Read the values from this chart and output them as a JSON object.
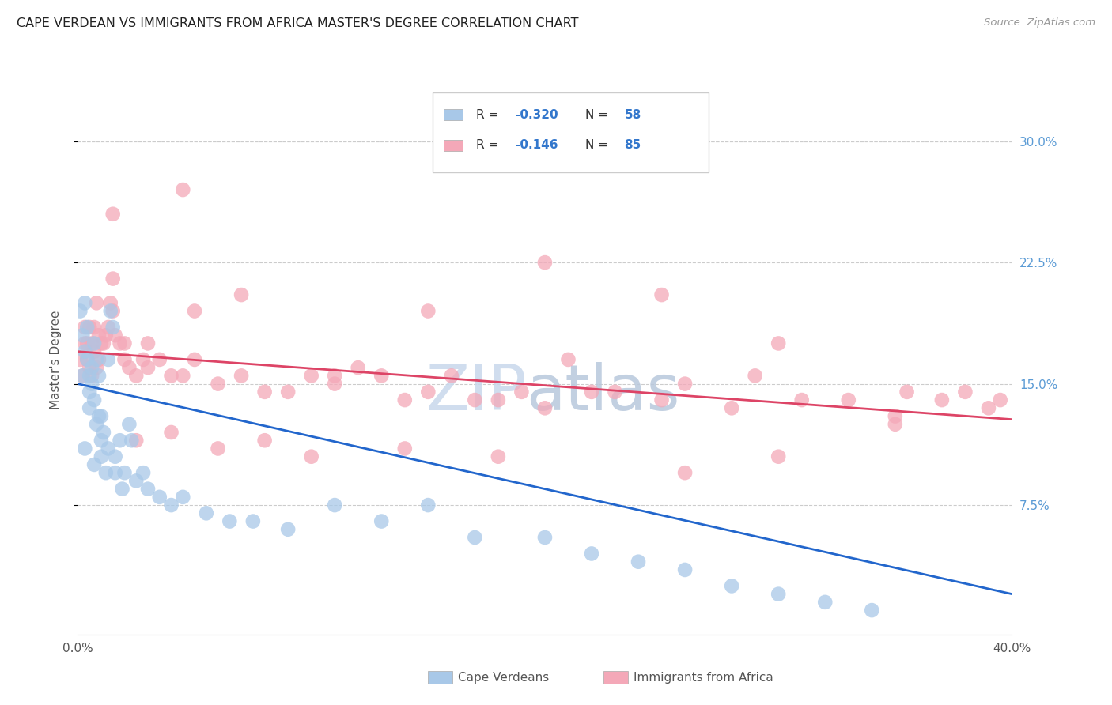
{
  "title": "CAPE VERDEAN VS IMMIGRANTS FROM AFRICA MASTER'S DEGREE CORRELATION CHART",
  "source": "Source: ZipAtlas.com",
  "ylabel": "Master's Degree",
  "ytick_vals": [
    0.075,
    0.15,
    0.225,
    0.3
  ],
  "ytick_labels": [
    "7.5%",
    "15.0%",
    "22.5%",
    "30.0%"
  ],
  "xrange": [
    0.0,
    0.4
  ],
  "yrange": [
    -0.005,
    0.335
  ],
  "blue_color": "#a8c8e8",
  "blue_line_color": "#2266cc",
  "pink_color": "#f4a8b8",
  "pink_line_color": "#dd4466",
  "watermark_zip": "ZIP",
  "watermark_atlas": "atlas",
  "background_color": "#ffffff",
  "grid_color": "#cccccc",
  "title_color": "#222222",
  "blue_label_R": "R = -0.320",
  "blue_label_N": "N = 58",
  "pink_label_R": "R = -0.146",
  "pink_label_N": "N = 85",
  "blue_x": [
    0.001,
    0.002,
    0.002,
    0.003,
    0.003,
    0.004,
    0.004,
    0.005,
    0.005,
    0.006,
    0.006,
    0.007,
    0.007,
    0.008,
    0.008,
    0.009,
    0.009,
    0.01,
    0.01,
    0.011,
    0.012,
    0.013,
    0.014,
    0.015,
    0.016,
    0.018,
    0.02,
    0.022,
    0.025,
    0.028,
    0.03,
    0.035,
    0.04,
    0.045,
    0.055,
    0.065,
    0.075,
    0.09,
    0.11,
    0.13,
    0.15,
    0.17,
    0.2,
    0.22,
    0.24,
    0.26,
    0.28,
    0.3,
    0.32,
    0.34,
    0.003,
    0.005,
    0.007,
    0.01,
    0.013,
    0.016,
    0.019,
    0.023
  ],
  "blue_y": [
    0.195,
    0.18,
    0.155,
    0.2,
    0.17,
    0.165,
    0.185,
    0.155,
    0.145,
    0.16,
    0.15,
    0.14,
    0.175,
    0.165,
    0.125,
    0.13,
    0.155,
    0.115,
    0.105,
    0.12,
    0.095,
    0.11,
    0.195,
    0.185,
    0.105,
    0.115,
    0.095,
    0.125,
    0.09,
    0.095,
    0.085,
    0.08,
    0.075,
    0.08,
    0.07,
    0.065,
    0.065,
    0.06,
    0.075,
    0.065,
    0.075,
    0.055,
    0.055,
    0.045,
    0.04,
    0.035,
    0.025,
    0.02,
    0.015,
    0.01,
    0.11,
    0.135,
    0.1,
    0.13,
    0.165,
    0.095,
    0.085,
    0.115
  ],
  "pink_x": [
    0.001,
    0.002,
    0.003,
    0.003,
    0.004,
    0.004,
    0.005,
    0.005,
    0.006,
    0.006,
    0.007,
    0.007,
    0.008,
    0.008,
    0.009,
    0.009,
    0.01,
    0.011,
    0.012,
    0.013,
    0.014,
    0.015,
    0.016,
    0.018,
    0.02,
    0.022,
    0.025,
    0.028,
    0.03,
    0.035,
    0.04,
    0.045,
    0.05,
    0.06,
    0.07,
    0.08,
    0.09,
    0.1,
    0.11,
    0.12,
    0.13,
    0.14,
    0.15,
    0.16,
    0.17,
    0.18,
    0.19,
    0.2,
    0.21,
    0.22,
    0.23,
    0.25,
    0.26,
    0.28,
    0.29,
    0.31,
    0.33,
    0.35,
    0.355,
    0.37,
    0.39,
    0.395,
    0.025,
    0.04,
    0.06,
    0.08,
    0.1,
    0.14,
    0.18,
    0.26,
    0.3,
    0.35,
    0.015,
    0.02,
    0.03,
    0.05,
    0.07,
    0.11,
    0.15,
    0.2,
    0.25,
    0.3,
    0.38,
    0.015,
    0.045
  ],
  "pink_y": [
    0.165,
    0.155,
    0.175,
    0.185,
    0.165,
    0.175,
    0.16,
    0.185,
    0.155,
    0.175,
    0.17,
    0.185,
    0.16,
    0.2,
    0.165,
    0.18,
    0.175,
    0.175,
    0.18,
    0.185,
    0.2,
    0.195,
    0.18,
    0.175,
    0.175,
    0.16,
    0.155,
    0.165,
    0.16,
    0.165,
    0.155,
    0.155,
    0.165,
    0.15,
    0.155,
    0.145,
    0.145,
    0.155,
    0.15,
    0.16,
    0.155,
    0.14,
    0.145,
    0.155,
    0.14,
    0.14,
    0.145,
    0.135,
    0.165,
    0.145,
    0.145,
    0.14,
    0.15,
    0.135,
    0.155,
    0.14,
    0.14,
    0.13,
    0.145,
    0.14,
    0.135,
    0.14,
    0.115,
    0.12,
    0.11,
    0.115,
    0.105,
    0.11,
    0.105,
    0.095,
    0.105,
    0.125,
    0.215,
    0.165,
    0.175,
    0.195,
    0.205,
    0.155,
    0.195,
    0.225,
    0.205,
    0.175,
    0.145,
    0.255,
    0.27
  ]
}
